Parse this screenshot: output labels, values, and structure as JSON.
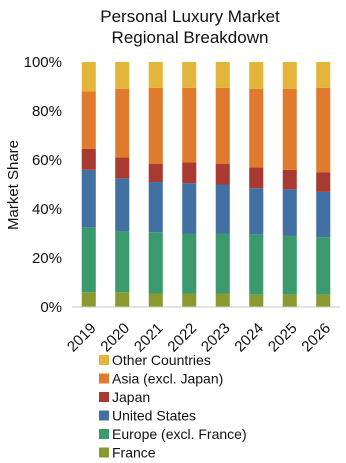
{
  "chart_data": {
    "type": "bar",
    "stacked": true,
    "title": "Personal Luxury Market\nRegional Breakdown",
    "ylabel": "Market Share",
    "ylim": [
      0,
      100
    ],
    "yticks": [
      "0%",
      "20%",
      "40%",
      "60%",
      "80%",
      "100%"
    ],
    "grid": false,
    "legend_position": "bottom",
    "categories": [
      "2019",
      "2020",
      "2021",
      "2022",
      "2023",
      "2024",
      "2025",
      "2026"
    ],
    "series": [
      {
        "name": "France",
        "color": "#8a9a2e",
        "values": [
          6,
          6,
          5.5,
          5.5,
          5.5,
          5,
          5,
          5
        ]
      },
      {
        "name": "Europe (excl. France)",
        "color": "#3a9a6e",
        "values": [
          26.5,
          25,
          25,
          24.5,
          24.5,
          24.5,
          24,
          23.5
        ]
      },
      {
        "name": "United States",
        "color": "#4270a3",
        "values": [
          23.5,
          21.5,
          20.5,
          20.5,
          20,
          19,
          19,
          18.5
        ]
      },
      {
        "name": "Japan",
        "color": "#a83a32",
        "values": [
          8.5,
          8.5,
          7.5,
          8.5,
          8.5,
          8.5,
          8,
          8
        ]
      },
      {
        "name": "Asia (excl. Japan)",
        "color": "#e07b2e",
        "values": [
          23.5,
          28,
          31,
          30.5,
          31,
          32,
          33,
          34.5
        ]
      },
      {
        "name": "Other Countries",
        "color": "#e3b53a",
        "values": [
          12,
          11,
          10.5,
          10.5,
          10.5,
          11,
          11,
          10.5
        ]
      }
    ]
  }
}
